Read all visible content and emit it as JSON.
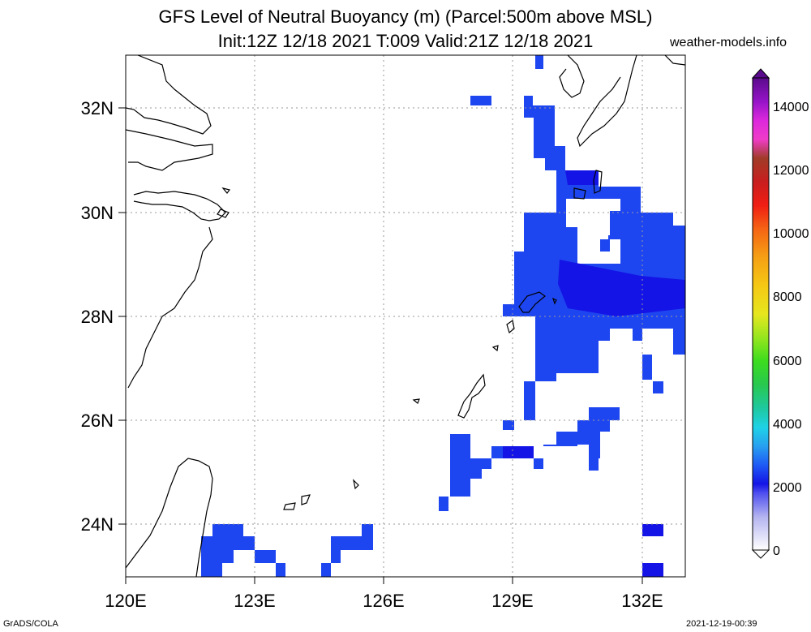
{
  "header": {
    "title_line1": "GFS Level of Neutral Buoyancy (m) (Parcel:500m above MSL)",
    "title_line2": "Init:12Z 12/18 2021 T:009 Valid:21Z 12/18 2021",
    "site": "weather-models.info"
  },
  "footer": {
    "left": "GrADS/COLA",
    "right": "2021-12-19-00:39"
  },
  "map": {
    "lon_labels": [
      "120E",
      "123E",
      "126E",
      "129E",
      "132E"
    ],
    "lat_labels": [
      "32N",
      "30N",
      "28N",
      "26N",
      "24N"
    ],
    "lon_range": [
      120,
      133
    ],
    "lat_range": [
      23,
      33
    ],
    "fill_colors": {
      "dark_blue": "#1414e6",
      "mid_blue": "#1e46f0",
      "light_blue": "#2864fa"
    }
  },
  "colorbar": {
    "labels": [
      "0",
      "2000",
      "4000",
      "6000",
      "8000",
      "10000",
      "12000",
      "14000"
    ],
    "range": [
      0,
      15000
    ]
  }
}
